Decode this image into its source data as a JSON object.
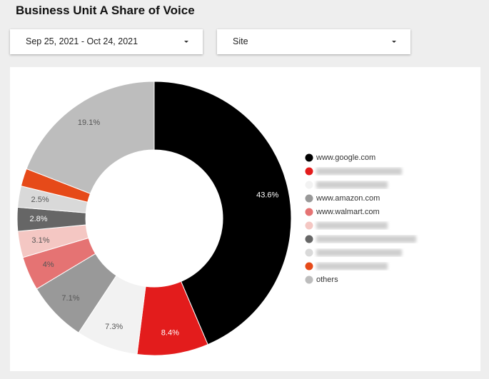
{
  "header": {
    "title": "Business Unit A Share of Voice"
  },
  "filters": [
    "Sep 25, 2021 - Oct 24, 2021",
    "Site"
  ],
  "chart_data": {
    "type": "donut",
    "categories": [
      "www.google.com",
      null,
      null,
      "www.amazon.com",
      "www.walmart.com",
      null,
      null,
      null,
      null,
      "others"
    ],
    "values": [
      43.6,
      8.4,
      7.3,
      7.1,
      4,
      3.1,
      2.8,
      2.5,
      2.1,
      19.1
    ],
    "value_labels": [
      "43.6%",
      "8.4%",
      "7.3%",
      "7.1%",
      "4%",
      "3.1%",
      "2.8%",
      "2.5%",
      null,
      "19.1%"
    ],
    "colors": [
      "#000000",
      "#e31c1c",
      "#f2f2f2",
      "#999999",
      "#e57373",
      "#f4c7c3",
      "#666666",
      "#d9d9d9",
      "#e64a19",
      "#bdbdbd"
    ]
  }
}
